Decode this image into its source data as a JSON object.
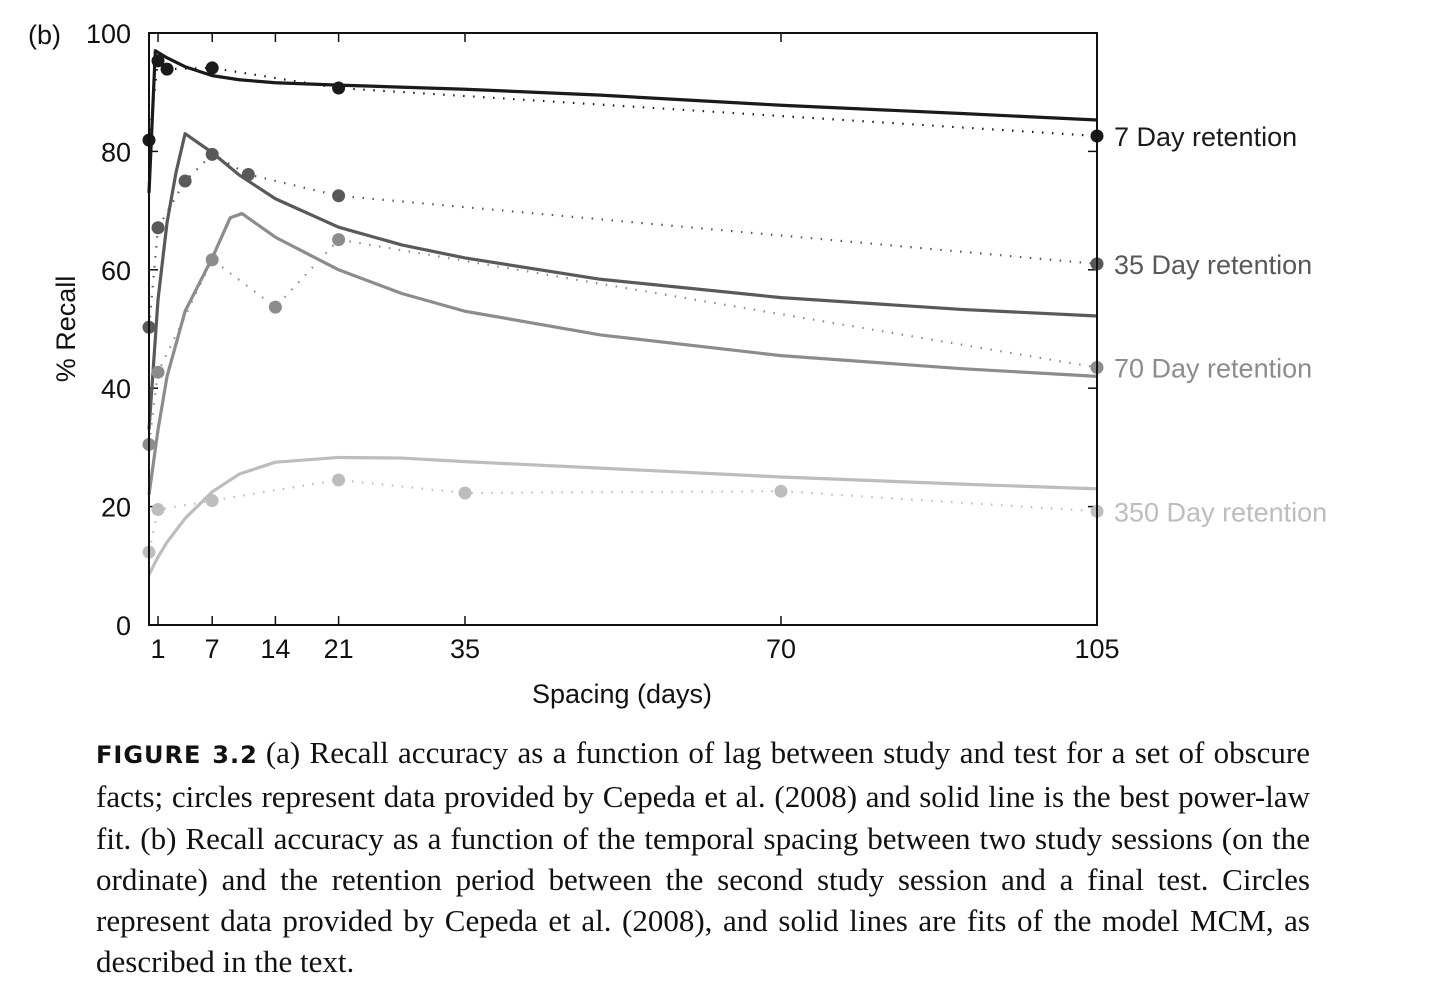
{
  "chart_data": {
    "type": "line",
    "panel_label": "(b)",
    "xlabel": "Spacing (days)",
    "ylabel": "% Recall",
    "xlim": [
      0,
      105
    ],
    "ylim": [
      0,
      100
    ],
    "x_ticks": [
      1,
      7,
      14,
      21,
      35,
      70,
      105
    ],
    "y_ticks": [
      0,
      20,
      40,
      60,
      80,
      100
    ],
    "grid": false,
    "legend_placement": "right (inline labels at line ends)",
    "series": [
      {
        "name": "7 Day retention",
        "color": "#1a1a1a",
        "data_points": [
          [
            0,
            81.9
          ],
          [
            1,
            95.3
          ],
          [
            2,
            93.9
          ],
          [
            7,
            94.1
          ],
          [
            21,
            90.7
          ],
          [
            105,
            82.6
          ]
        ],
        "fit": [
          [
            0,
            73
          ],
          [
            0.7,
            97
          ],
          [
            2,
            95.8
          ],
          [
            4,
            94.3
          ],
          [
            7,
            92.8
          ],
          [
            10,
            92.1
          ],
          [
            14,
            91.6
          ],
          [
            21,
            91.2
          ],
          [
            35,
            90.5
          ],
          [
            50,
            89.5
          ],
          [
            70,
            87.8
          ],
          [
            90,
            86.4
          ],
          [
            105,
            85.3
          ]
        ]
      },
      {
        "name": "35 Day retention",
        "color": "#595959",
        "data_points": [
          [
            0,
            50.3
          ],
          [
            1,
            67.1
          ],
          [
            4,
            75
          ],
          [
            7,
            79.5
          ],
          [
            11,
            76.1
          ],
          [
            21,
            72.5
          ],
          [
            105,
            61
          ]
        ],
        "fit": [
          [
            0,
            33
          ],
          [
            1,
            55
          ],
          [
            2,
            68
          ],
          [
            3,
            76.5
          ],
          [
            4,
            83
          ],
          [
            7,
            79.8
          ],
          [
            10,
            76
          ],
          [
            14,
            72
          ],
          [
            21,
            67.2
          ],
          [
            28,
            64.2
          ],
          [
            35,
            62
          ],
          [
            50,
            58.4
          ],
          [
            70,
            55.3
          ],
          [
            90,
            53.3
          ],
          [
            105,
            52.2
          ]
        ]
      },
      {
        "name": "70 Day retention",
        "color": "#8c8c8c",
        "data_points": [
          [
            0,
            30.5
          ],
          [
            1,
            42.7
          ],
          [
            7,
            61.7
          ],
          [
            14,
            53.7
          ],
          [
            21,
            65.1
          ],
          [
            105,
            43.5
          ]
        ],
        "fit": [
          [
            0,
            22
          ],
          [
            1,
            33
          ],
          [
            2,
            42
          ],
          [
            4,
            53
          ],
          [
            7,
            62
          ],
          [
            9,
            68.8
          ],
          [
            10.3,
            69.5
          ],
          [
            14,
            65.5
          ],
          [
            21,
            60
          ],
          [
            28,
            56
          ],
          [
            35,
            53
          ],
          [
            50,
            49
          ],
          [
            70,
            45.5
          ],
          [
            90,
            43.3
          ],
          [
            105,
            42
          ]
        ]
      },
      {
        "name": "350 Day retention",
        "color": "#bdbdbd",
        "data_points": [
          [
            0,
            12.3
          ],
          [
            1,
            19.5
          ],
          [
            7,
            21
          ],
          [
            21,
            24.5
          ],
          [
            35,
            22.3
          ],
          [
            70,
            22.6
          ],
          [
            105,
            19.2
          ]
        ],
        "fit": [
          [
            0,
            8.5
          ],
          [
            1,
            11.5
          ],
          [
            2,
            14
          ],
          [
            4,
            18
          ],
          [
            7,
            22.5
          ],
          [
            10,
            25.5
          ],
          [
            14,
            27.5
          ],
          [
            21,
            28.3
          ],
          [
            28,
            28.2
          ],
          [
            35,
            27.6
          ],
          [
            50,
            26.5
          ],
          [
            70,
            25
          ],
          [
            90,
            23.8
          ],
          [
            105,
            23
          ]
        ]
      }
    ]
  },
  "caption": {
    "label": "FIGURE 3.2",
    "text_before_mcm": "(a) Recall accuracy as a function of lag between study and test for a set of obscure facts; circles represent data provided by Cepeda et al. (2008) and solid line is the best power-law fit. (b) Recall accuracy as a function of the temporal spacing between two study sessions (on the ordinate) and the retention period between the second study session and a final test. Circles represent data provided by Cepeda et al. (2008), and solid lines are fits of the model",
    "mcm": "MCM",
    "text_after_mcm": ", as described in the text."
  }
}
